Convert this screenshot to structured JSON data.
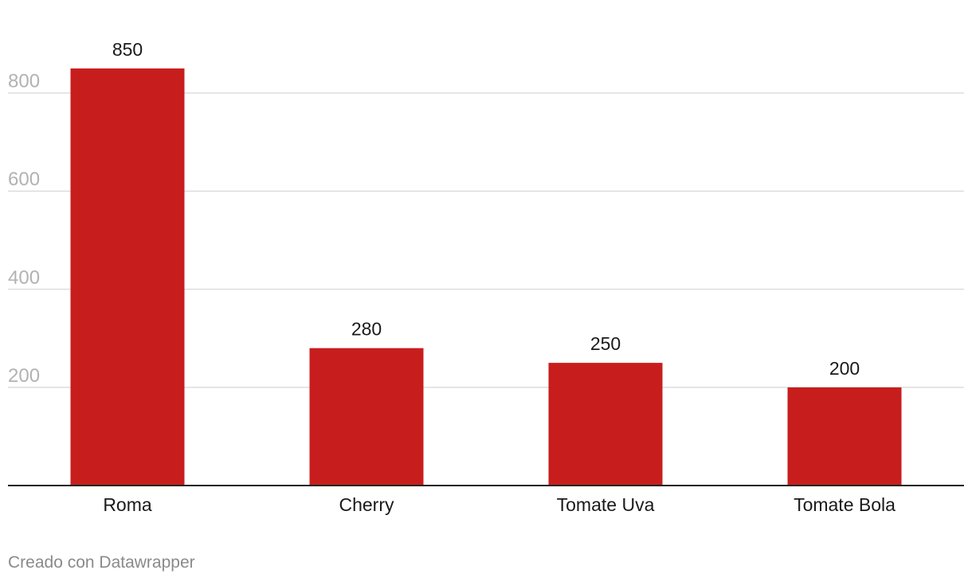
{
  "chart_data": {
    "type": "bar",
    "title": "",
    "xlabel": "",
    "ylabel": "",
    "categories": [
      "Roma",
      "Cherry",
      "Tomate Uva",
      "Tomate Bola"
    ],
    "values": [
      850,
      280,
      250,
      200
    ],
    "data_labels": [
      "850",
      "280",
      "250",
      "200"
    ],
    "y_ticks": [
      200,
      400,
      600,
      800
    ],
    "y_tick_labels": [
      "200",
      "400",
      "600",
      "800"
    ],
    "ylim": [
      0,
      800
    ],
    "grid": true,
    "legend": "none",
    "bar_color": "#c81d1d"
  },
  "footer": {
    "credit": "Creado con Datawrapper"
  }
}
